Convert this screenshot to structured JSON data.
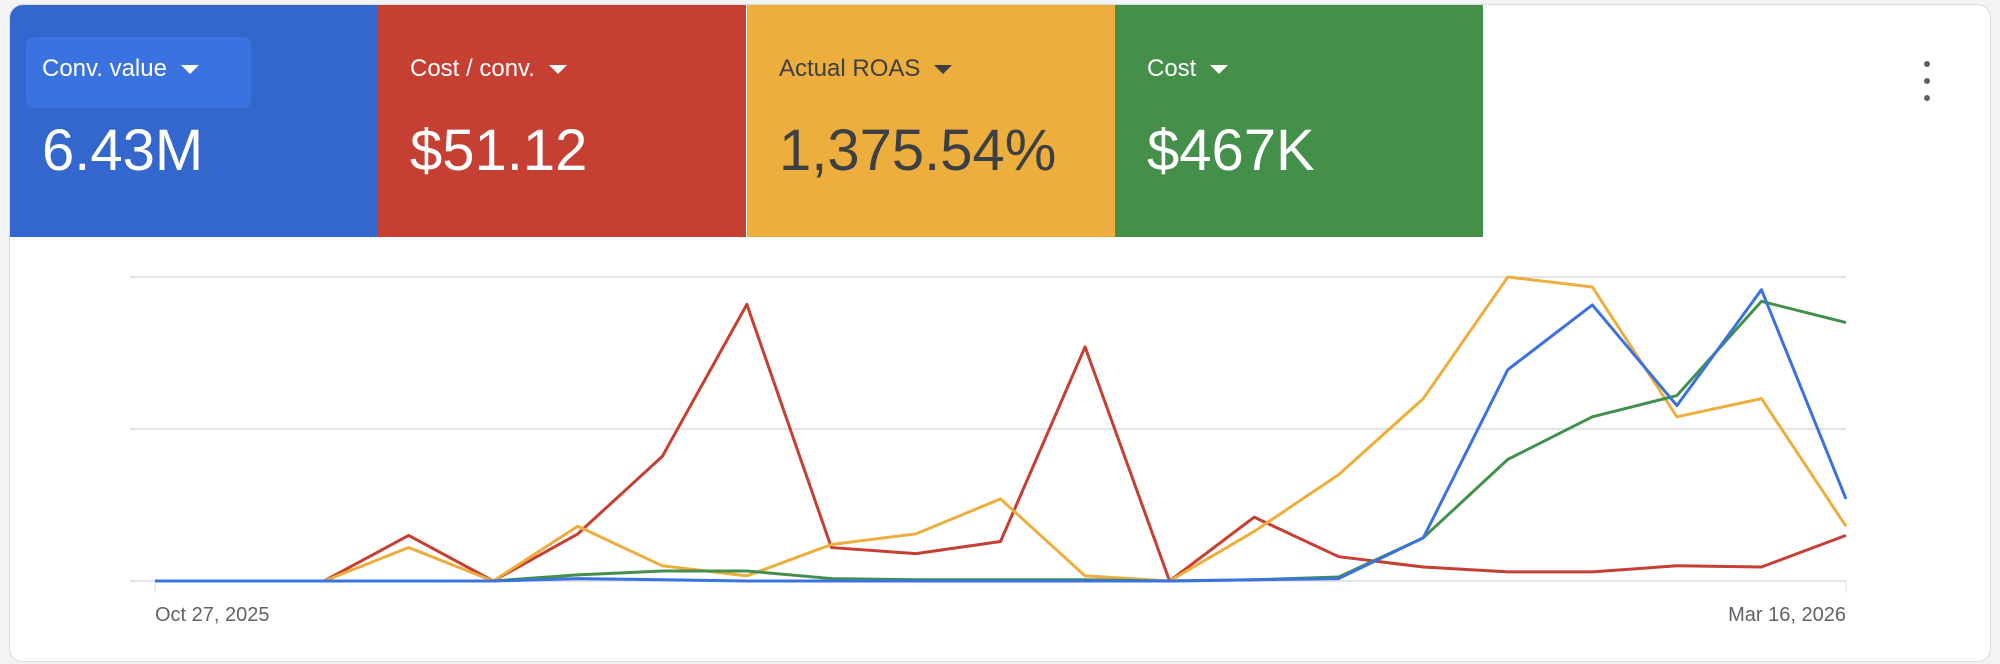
{
  "metrics": [
    {
      "label": "Conv. value",
      "value": "6.43M",
      "color": "#3367cd"
    },
    {
      "label": "Cost / conv.",
      "value": "$51.12",
      "color": "#c53f32"
    },
    {
      "label": "Actual ROAS",
      "value": "1,375.54%",
      "color": "#edae3d"
    },
    {
      "label": "Cost",
      "value": "$467K",
      "color": "#44904b"
    }
  ],
  "menu_icon": "more-vert-icon",
  "chart_data": {
    "type": "line",
    "x_start_label": "Oct 27, 2025",
    "x_end_label": "Mar 16, 2026",
    "x_count": 21,
    "ylim": [
      0,
      1
    ],
    "grid": true,
    "note": "values normalized per series (axes hidden)",
    "series": [
      {
        "name": "Cost / conv.",
        "color": "#c53f32",
        "values": [
          0,
          0,
          0,
          0.15,
          0,
          0.155,
          0.41,
          0.91,
          0.11,
          0.09,
          0.13,
          0.77,
          0,
          0.21,
          0.08,
          0.046,
          0.03,
          0.03,
          0.05,
          0.046,
          0.15
        ]
      },
      {
        "name": "Actual ROAS",
        "color": "#edae3d",
        "values": [
          0,
          0,
          0,
          0.11,
          0,
          0.18,
          0.05,
          0.017,
          0.12,
          0.155,
          0.27,
          0.017,
          0,
          0.163,
          0.35,
          0.6,
          1,
          0.967,
          0.54,
          0.6,
          0.18
        ]
      },
      {
        "name": "Cost",
        "color": "#44904b",
        "values": [
          0,
          0,
          0,
          0,
          0,
          0.02,
          0.033,
          0.033,
          0.008,
          0.004,
          0.004,
          0.004,
          0,
          0.004,
          0.013,
          0.142,
          0.4,
          0.54,
          0.61,
          0.92,
          0.85
        ]
      },
      {
        "name": "Conv. value",
        "color": "#3a73e0",
        "values": [
          0,
          0,
          0,
          0,
          0,
          0.008,
          0.004,
          0,
          0,
          0,
          0,
          0,
          0,
          0.004,
          0.008,
          0.142,
          0.695,
          0.908,
          0.577,
          0.958,
          0.27
        ]
      }
    ]
  }
}
